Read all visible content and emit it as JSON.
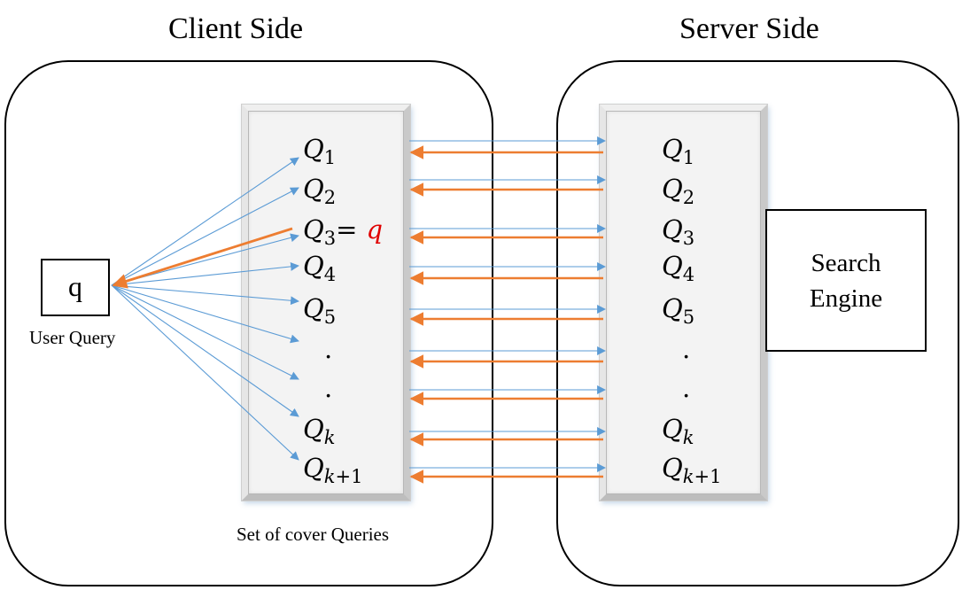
{
  "client_side": {
    "title": "Client Side",
    "user_query_box": "q",
    "user_query_label": "User Query",
    "panel_label": "Set of cover Queries",
    "queries": [
      {
        "letter": "Q",
        "sub": "1"
      },
      {
        "letter": "Q",
        "sub": "2"
      },
      {
        "letter": "Q",
        "sub": "3",
        "eq": "=",
        "real": "q"
      },
      {
        "letter": "Q",
        "sub": "4"
      },
      {
        "letter": "Q",
        "sub": "5"
      },
      {
        "dot": "."
      },
      {
        "dot": "."
      },
      {
        "letter": "Q",
        "sub_var": "k"
      },
      {
        "letter": "Q",
        "sub_var": "k",
        "sub_rest": "+1"
      }
    ]
  },
  "server_side": {
    "title": "Server Side",
    "engine_line1": "Search",
    "engine_line2": "Engine",
    "queries": [
      {
        "letter": "Q",
        "sub": "1"
      },
      {
        "letter": "Q",
        "sub": "2"
      },
      {
        "letter": "Q",
        "sub": "3"
      },
      {
        "letter": "Q",
        "sub": "4"
      },
      {
        "letter": "Q",
        "sub": "5"
      },
      {
        "dot": "."
      },
      {
        "dot": "."
      },
      {
        "letter": "Q",
        "sub_var": "k"
      },
      {
        "letter": "Q",
        "sub_var": "k",
        "sub_rest": "+1"
      }
    ]
  },
  "colors": {
    "blue_arrow": "#5b9bd5",
    "orange_arrow": "#ed7d31",
    "highlight": "#e00000"
  }
}
